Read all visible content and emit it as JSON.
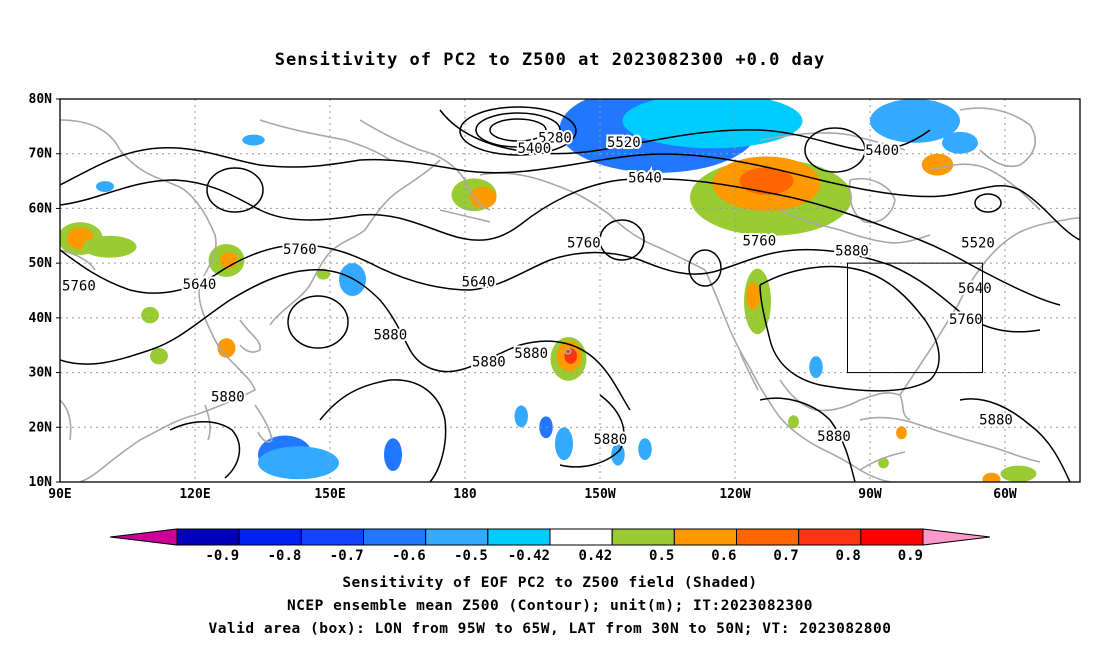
{
  "title": "Sensitivity of PC2 to Z500 at 2023082300 +0.0 day",
  "lat_labels": [
    "80N",
    "70N",
    "60N",
    "50N",
    "40N",
    "30N",
    "20N",
    "10N"
  ],
  "lon_labels": [
    "90E",
    "120E",
    "150E",
    "180",
    "150W",
    "120W",
    "90W",
    "60W"
  ],
  "contour_labels": [
    {
      "text": "5280",
      "lon": -160.0,
      "lat": 72.8
    },
    {
      "text": "5400",
      "lon": -164.6,
      "lat": 70.9
    },
    {
      "text": "5520",
      "lon": -144.7,
      "lat": 72.0
    },
    {
      "text": "5640",
      "lon": -140.0,
      "lat": 65.5
    },
    {
      "text": "5400",
      "lon": -87.3,
      "lat": 70.5
    },
    {
      "text": "5520",
      "lon": -66.0,
      "lat": 53.6
    },
    {
      "text": "5640",
      "lon": -66.7,
      "lat": 45.3
    },
    {
      "text": "5760",
      "lon": -68.7,
      "lat": 39.6
    },
    {
      "text": "5880",
      "lon": -94.0,
      "lat": 52.1
    },
    {
      "text": "5760",
      "lon": -114.6,
      "lat": 54.0
    },
    {
      "text": "5760",
      "lon": -153.6,
      "lat": 53.6
    },
    {
      "text": "5640",
      "lon": -177.0,
      "lat": 46.5
    },
    {
      "text": "5760",
      "lon": 143.3,
      "lat": 52.4
    },
    {
      "text": "5640",
      "lon": 121.0,
      "lat": 46.0
    },
    {
      "text": "5760",
      "lon": 94.2,
      "lat": 45.7
    },
    {
      "text": "5880",
      "lon": 163.4,
      "lat": 36.8
    },
    {
      "text": "5880",
      "lon": -174.7,
      "lat": 31.8
    },
    {
      "text": "5880",
      "lon": -165.3,
      "lat": 33.4
    },
    {
      "text": "5880",
      "lon": 127.3,
      "lat": 25.4
    },
    {
      "text": "5880",
      "lon": -147.7,
      "lat": 17.7
    },
    {
      "text": "5880",
      "lon": -98.0,
      "lat": 18.2
    },
    {
      "text": "5880",
      "lon": -62.0,
      "lat": 21.2
    }
  ],
  "valid_box": {
    "lon_min": -95,
    "lon_max": -65,
    "lat_min": 30,
    "lat_max": 50
  },
  "colorbar": {
    "tick_labels": [
      "-0.9",
      "-0.8",
      "-0.7",
      "-0.6",
      "-0.5",
      "-0.42",
      "0.42",
      "0.5",
      "0.6",
      "0.7",
      "0.8",
      "0.9"
    ],
    "colors": [
      "#cc0099",
      "#0000bb",
      "#0022ee",
      "#1144ff",
      "#2277ff",
      "#33aaff",
      "#00ccff",
      "#ffffff",
      "#99cc33",
      "#ff9900",
      "#ff6600",
      "#ff3311",
      "#ff0000",
      "#ff99cc"
    ]
  },
  "shaded_regions": [
    {
      "lon": -137,
      "lat": 74.5,
      "rx": 22,
      "ry": 8,
      "color": "#2277ff"
    },
    {
      "lon": -125,
      "lat": 76,
      "rx": 20,
      "ry": 5,
      "color": "#00ccff"
    },
    {
      "lon": -80,
      "lat": 76,
      "rx": 10,
      "ry": 4,
      "color": "#33aaff"
    },
    {
      "lon": -112,
      "lat": 62,
      "rx": 18,
      "ry": 7,
      "color": "#99cc33"
    },
    {
      "lon": -113,
      "lat": 64.5,
      "rx": 12,
      "ry": 5,
      "color": "#ff9900"
    },
    {
      "lon": -113,
      "lat": 65,
      "rx": 6,
      "ry": 2.5,
      "color": "#ff6600"
    },
    {
      "lon": -75,
      "lat": 68,
      "rx": 3.5,
      "ry": 2,
      "color": "#ff9900"
    },
    {
      "lon": -178,
      "lat": 62.5,
      "rx": 5,
      "ry": 3,
      "color": "#99cc33"
    },
    {
      "lon": -176,
      "lat": 62,
      "rx": 3,
      "ry": 2,
      "color": "#ff9900"
    },
    {
      "lon": 94.5,
      "lat": 54.5,
      "rx": 5,
      "ry": 3,
      "color": "#99cc33"
    },
    {
      "lon": 94.5,
      "lat": 54.5,
      "rx": 3,
      "ry": 2,
      "color": "#ff9900"
    },
    {
      "lon": 101,
      "lat": 53,
      "rx": 6,
      "ry": 2,
      "color": "#99cc33"
    },
    {
      "lon": 127,
      "lat": 50.5,
      "rx": 4,
      "ry": 3,
      "color": "#99cc33"
    },
    {
      "lon": 127.5,
      "lat": 50.5,
      "rx": 2,
      "ry": 1.5,
      "color": "#ff9900"
    },
    {
      "lon": -157,
      "lat": 32.5,
      "rx": 4,
      "ry": 4,
      "color": "#99cc33"
    },
    {
      "lon": -156.8,
      "lat": 33,
      "rx": 2.8,
      "ry": 2.8,
      "color": "#ff9900"
    },
    {
      "lon": -156.5,
      "lat": 33,
      "rx": 1.4,
      "ry": 1.4,
      "color": "#ff3311"
    },
    {
      "lon": -63,
      "lat": 10.5,
      "rx": 2,
      "ry": 1.2,
      "color": "#ff9900"
    },
    {
      "lon": -115,
      "lat": 43,
      "rx": 3,
      "ry": 6,
      "color": "#99cc33"
    },
    {
      "lon": -116,
      "lat": 44,
      "rx": 1.5,
      "ry": 2.5,
      "color": "#ff9900"
    },
    {
      "lon": 140,
      "lat": 15,
      "rx": 6,
      "ry": 3.5,
      "color": "#2277ff"
    },
    {
      "lon": 143,
      "lat": 13.5,
      "rx": 9,
      "ry": 3,
      "color": "#33aaff"
    },
    {
      "lon": 164,
      "lat": 15,
      "rx": 2,
      "ry": 3,
      "color": "#2277ff"
    },
    {
      "lon": -167.5,
      "lat": 22,
      "rx": 1.5,
      "ry": 2,
      "color": "#33aaff"
    },
    {
      "lon": -162,
      "lat": 20,
      "rx": 1.5,
      "ry": 2,
      "color": "#2277ff"
    },
    {
      "lon": -158,
      "lat": 17,
      "rx": 2,
      "ry": 3,
      "color": "#33aaff"
    },
    {
      "lon": -146,
      "lat": 15,
      "rx": 1.5,
      "ry": 2,
      "color": "#33aaff"
    },
    {
      "lon": -140,
      "lat": 16,
      "rx": 1.5,
      "ry": 2,
      "color": "#33aaff"
    },
    {
      "lon": 100,
      "lat": 64,
      "rx": 2,
      "ry": 1,
      "color": "#33aaff"
    },
    {
      "lon": 133,
      "lat": 72.5,
      "rx": 2.5,
      "ry": 1,
      "color": "#33aaff"
    },
    {
      "lon": 155,
      "lat": 47,
      "rx": 3,
      "ry": 3,
      "color": "#33aaff"
    },
    {
      "lon": 148.5,
      "lat": 48,
      "rx": 1.5,
      "ry": 1,
      "color": "#99cc33"
    },
    {
      "lon": -70,
      "lat": 72,
      "rx": 4,
      "ry": 2,
      "color": "#33aaff"
    },
    {
      "lon": 110,
      "lat": 40.5,
      "rx": 2,
      "ry": 1.5,
      "color": "#99cc33"
    },
    {
      "lon": 112,
      "lat": 33,
      "rx": 2,
      "ry": 1.5,
      "color": "#99cc33"
    },
    {
      "lon": 127,
      "lat": 34.5,
      "rx": 2,
      "ry": 1.8,
      "color": "#ff9900"
    },
    {
      "lon": -57,
      "lat": 11.5,
      "rx": 4,
      "ry": 1.5,
      "color": "#99cc33"
    },
    {
      "lon": -102,
      "lat": 31,
      "rx": 1.5,
      "ry": 2,
      "color": "#33aaff"
    },
    {
      "lon": -107,
      "lat": 21,
      "rx": 1.2,
      "ry": 1.2,
      "color": "#99cc33"
    },
    {
      "lon": -83,
      "lat": 19,
      "rx": 1.2,
      "ry": 1.2,
      "color": "#ff9900"
    },
    {
      "lon": -87,
      "lat": 13.5,
      "rx": 1.2,
      "ry": 1,
      "color": "#99cc33"
    }
  ],
  "captions": [
    "Sensitivity of EOF PC2 to Z500 field (Shaded)",
    "NCEP ensemble mean Z500 (Contour); unit(m); IT:2023082300",
    "Valid area (box): LON from 95W to 65W, LAT from 30N to 50N; VT: 2023082800"
  ]
}
